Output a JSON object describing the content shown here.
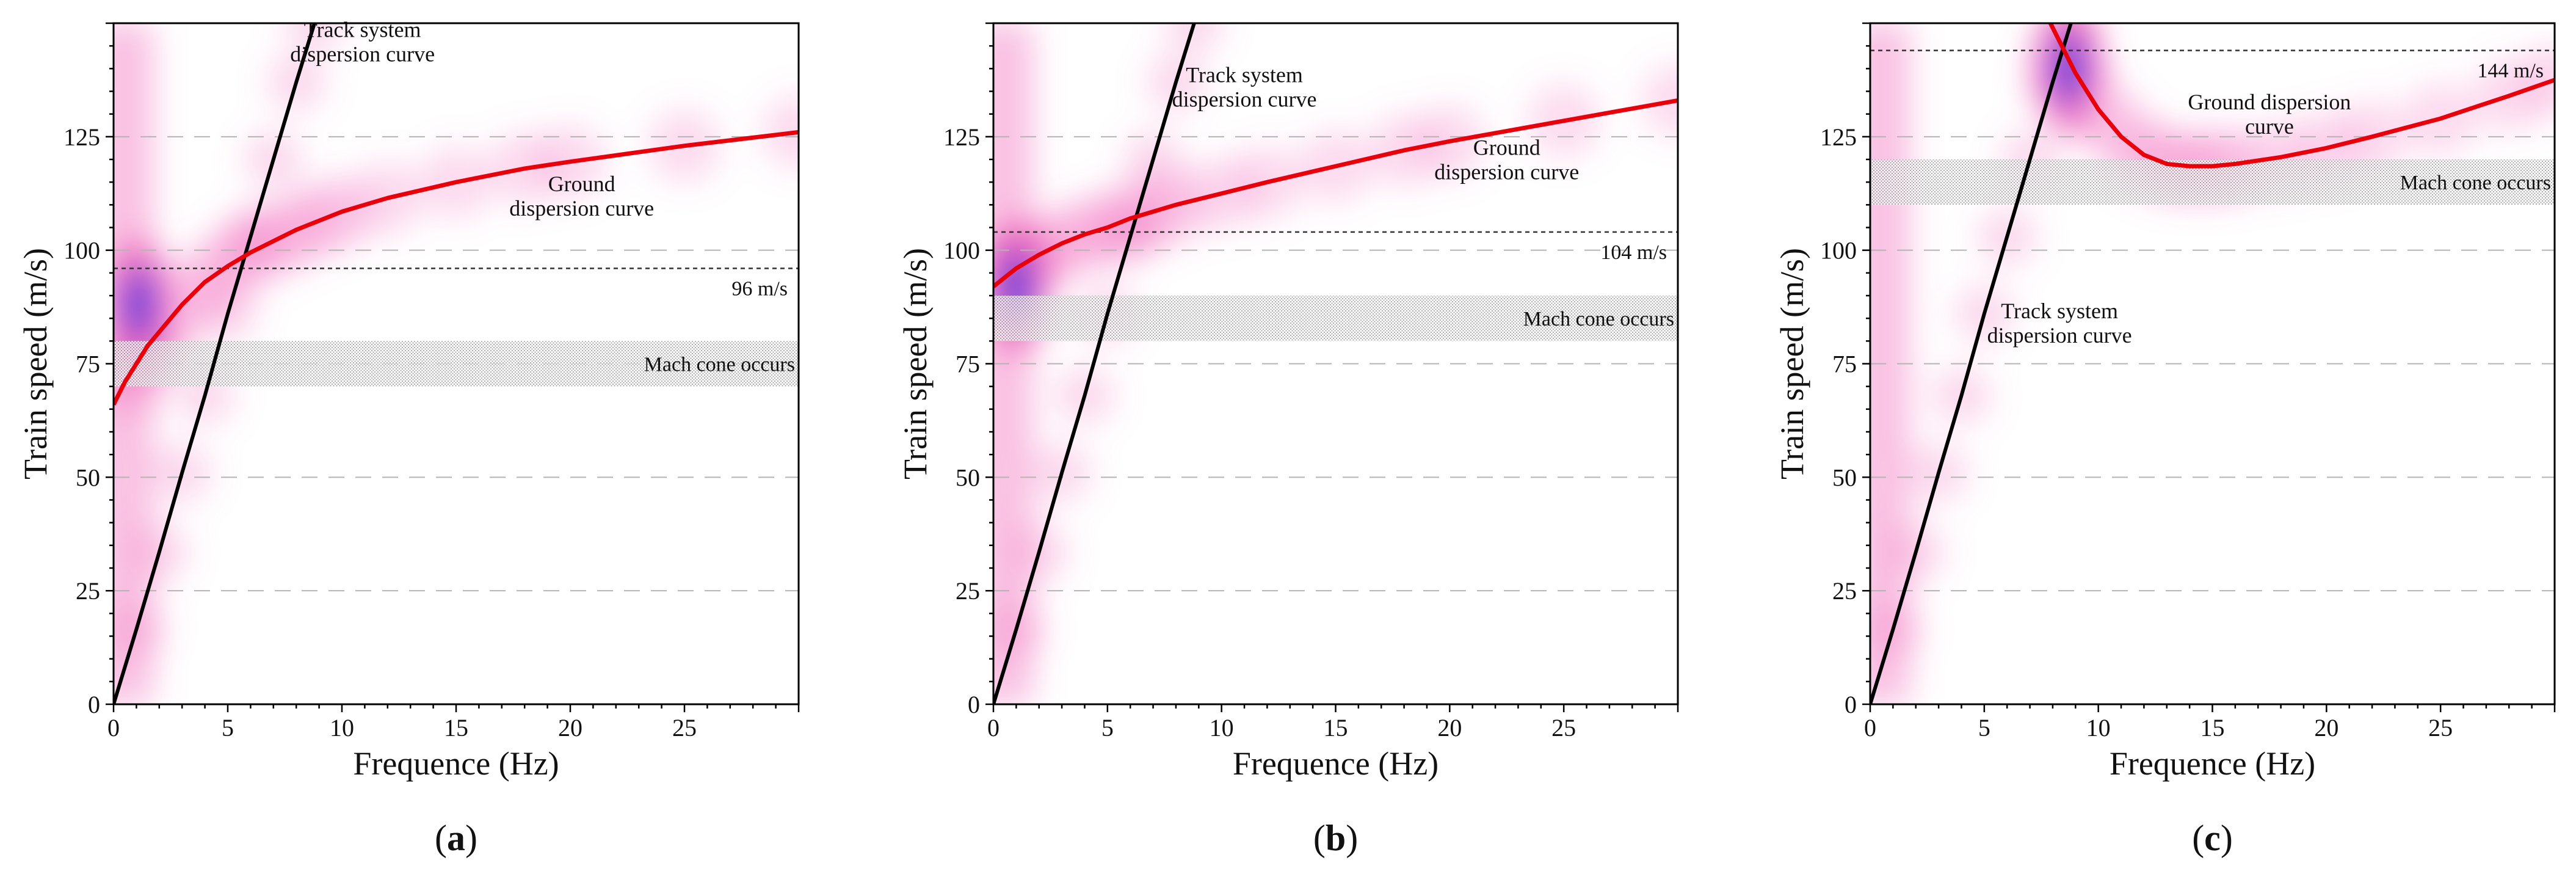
{
  "figure": {
    "panels": [
      "(a)",
      "(b)",
      "(c)"
    ],
    "colors": {
      "ground_curve": "#e8000b",
      "track_curve": "#000000",
      "contour_pink": "#f05cb4",
      "contour_blue": "#3a3ae0",
      "grid": "#b4b4b4",
      "shade": "#777777"
    }
  },
  "chart_data": [
    {
      "type": "contour",
      "panel_label": "(a)",
      "xlabel": "Frequence (Hz)",
      "ylabel": "Train speed (m/s)",
      "xlim": [
        0,
        30
      ],
      "ylim": [
        0,
        150
      ],
      "xticks": [
        0,
        5,
        10,
        15,
        20,
        25
      ],
      "yticks": [
        0,
        25,
        50,
        75,
        100,
        125
      ],
      "grid_y": [
        25,
        50,
        75,
        100,
        125
      ],
      "series": [
        {
          "name": "Track system dispersion curve",
          "x": [
            0,
            1,
            2,
            3,
            4,
            5,
            6,
            7,
            8,
            8.8
          ],
          "y": [
            0,
            16.5,
            33.5,
            51,
            68,
            86,
            103,
            120,
            137,
            150
          ]
        },
        {
          "name": "Ground dispersion curve",
          "x": [
            0,
            0.5,
            1,
            1.5,
            2,
            3,
            4,
            5,
            6,
            7,
            8,
            9,
            10,
            12,
            15,
            18,
            20,
            25,
            30
          ],
          "y": [
            66,
            71,
            75,
            79,
            82,
            88,
            93,
            96.5,
            99.5,
            102,
            104.5,
            106.5,
            108.5,
            111.5,
            115,
            118,
            119.5,
            123,
            126
          ]
        }
      ],
      "reference_line": {
        "value": 96,
        "label": "96 m/s"
      },
      "shaded_band": {
        "range": [
          70,
          80
        ],
        "label": "Mach cone occurs"
      },
      "hotspot": {
        "x": 1.1,
        "y": 88
      },
      "annotations": [
        {
          "text": [
            "Track system",
            "dispersion curve"
          ],
          "x": 10.9,
          "y": 147
        },
        {
          "text": [
            "Ground",
            "dispersion curve"
          ],
          "x": 20.5,
          "y": 113
        }
      ]
    },
    {
      "type": "contour",
      "panel_label": "(b)",
      "xlabel": "Frequence (Hz)",
      "ylabel": "Train speed (m/s)",
      "xlim": [
        0,
        30
      ],
      "ylim": [
        0,
        150
      ],
      "xticks": [
        0,
        5,
        10,
        15,
        20,
        25
      ],
      "yticks": [
        0,
        25,
        50,
        75,
        100,
        125
      ],
      "grid_y": [
        25,
        50,
        75,
        100,
        125
      ],
      "series": [
        {
          "name": "Track system dispersion curve",
          "x": [
            0,
            1,
            2,
            3,
            4,
            5,
            6,
            7,
            8,
            8.8
          ],
          "y": [
            0,
            16.5,
            33.5,
            51,
            68,
            86,
            103,
            120,
            137,
            150
          ]
        },
        {
          "name": "Ground dispersion curve",
          "x": [
            0,
            0.5,
            1,
            1.5,
            2,
            3,
            4,
            5,
            6,
            7,
            8,
            10,
            12,
            15,
            18,
            20,
            25,
            30
          ],
          "y": [
            92,
            94,
            96,
            97.5,
            99,
            101.5,
            103.5,
            105,
            107,
            108.5,
            110,
            112.5,
            115,
            118.5,
            122,
            124,
            128.5,
            133
          ]
        }
      ],
      "reference_line": {
        "value": 104,
        "label": "104 m/s"
      },
      "shaded_band": {
        "range": [
          80,
          90
        ],
        "label": "Mach cone occurs"
      },
      "hotspot": {
        "x": 1.0,
        "y": 92
      },
      "annotations": [
        {
          "text": [
            "Track system",
            "dispersion curve"
          ],
          "x": 11.0,
          "y": 137
        },
        {
          "text": [
            "Ground",
            "dispersion curve"
          ],
          "x": 22.5,
          "y": 121
        }
      ]
    },
    {
      "type": "contour",
      "panel_label": "(c)",
      "xlabel": "Frequence (Hz)",
      "ylabel": "Train speed (m/s)",
      "xlim": [
        0,
        30
      ],
      "ylim": [
        0,
        150
      ],
      "xticks": [
        0,
        5,
        10,
        15,
        20,
        25
      ],
      "yticks": [
        0,
        25,
        50,
        75,
        100,
        125
      ],
      "grid_y": [
        25,
        50,
        75,
        100,
        125
      ],
      "series": [
        {
          "name": "Track system dispersion curve",
          "x": [
            0,
            1,
            2,
            3,
            4,
            5,
            6,
            7,
            8,
            8.8
          ],
          "y": [
            0,
            16.5,
            33.5,
            51,
            68,
            86,
            103,
            120,
            137,
            150
          ]
        },
        {
          "name": "Ground dispersion curve",
          "x": [
            7.9,
            8.5,
            9,
            10,
            11,
            12,
            13,
            14,
            15,
            16,
            18,
            20,
            22,
            25,
            28,
            30
          ],
          "y": [
            150,
            144,
            139,
            131,
            125,
            121,
            119,
            118.5,
            118.5,
            119,
            120.5,
            122.5,
            125,
            129,
            134,
            137.5
          ]
        }
      ],
      "reference_line": {
        "value": 144,
        "label": "144 m/s"
      },
      "shaded_band": {
        "range": [
          110,
          120
        ],
        "label": "Mach cone occurs"
      },
      "hotspot": {
        "x": 8.7,
        "y": 140
      },
      "annotations": [
        {
          "text": [
            "Track system",
            "dispersion curve"
          ],
          "x": 8.3,
          "y": 85
        },
        {
          "text": [
            "Ground dispersion",
            "curve"
          ],
          "x": 17.5,
          "y": 131
        }
      ]
    }
  ]
}
